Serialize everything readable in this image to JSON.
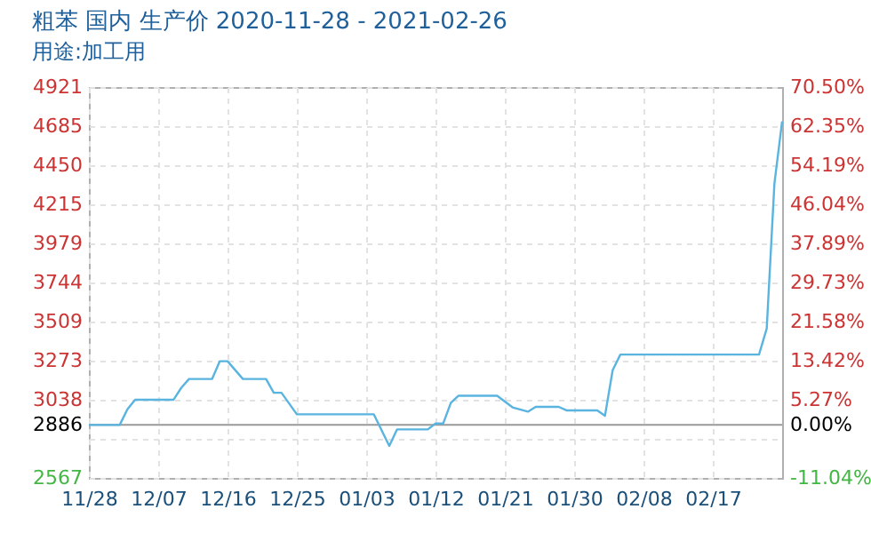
{
  "chart_data": {
    "type": "line",
    "title": "粗苯 国内 生产价 2020-11-28 - 2021-02-26",
    "subtitle": "用途:加工用",
    "x": [
      "2020-11-28",
      "2020-12-02",
      "2020-12-03",
      "2020-12-04",
      "2020-12-09",
      "2020-12-10",
      "2020-12-11",
      "2020-12-14",
      "2020-12-15",
      "2020-12-16",
      "2020-12-18",
      "2020-12-21",
      "2020-12-22",
      "2020-12-23",
      "2020-12-25",
      "2021-01-04",
      "2021-01-06",
      "2021-01-07",
      "2021-01-11",
      "2021-01-12",
      "2021-01-13",
      "2021-01-14",
      "2021-01-15",
      "2021-01-20",
      "2021-01-22",
      "2021-01-24",
      "2021-01-25",
      "2021-01-28",
      "2021-01-29",
      "2021-02-02",
      "2021-02-03",
      "2021-02-04",
      "2021-02-05",
      "2021-02-23",
      "2021-02-24",
      "2021-02-25",
      "2021-02-26"
    ],
    "series": [
      {
        "color": "#5ab4e0",
        "values": [
          2886,
          2886,
          2980,
          3038,
          3038,
          3110,
          3163,
          3163,
          3270,
          3270,
          3163,
          3163,
          3080,
          3080,
          2950,
          2950,
          2760,
          2859,
          2859,
          2895,
          2895,
          3020,
          3062,
          3062,
          2992,
          2966,
          2995,
          2995,
          2974,
          2974,
          2941,
          3216,
          3310,
          3310,
          3466,
          4340,
          4714
        ]
      }
    ],
    "xlim": [
      "2020-11-28",
      "2021-02-26"
    ],
    "xticks": [
      {
        "value": "2020-11-28",
        "label": "11/28"
      },
      {
        "value": "2020-12-07",
        "label": "12/07"
      },
      {
        "value": "2020-12-16",
        "label": "12/16"
      },
      {
        "value": "2020-12-25",
        "label": "12/25"
      },
      {
        "value": "2021-01-03",
        "label": "01/03"
      },
      {
        "value": "2021-01-12",
        "label": "01/12"
      },
      {
        "value": "2021-01-21",
        "label": "01/21"
      },
      {
        "value": "2021-01-30",
        "label": "01/30"
      },
      {
        "value": "2021-02-08",
        "label": "02/08"
      },
      {
        "value": "2021-02-17",
        "label": "02/17"
      }
    ],
    "ylim": [
      2567,
      4921
    ],
    "yticks": [
      2567,
      {
        "value": 2802,
        "label": null
      },
      3038,
      3273,
      3509,
      3744,
      3979,
      4215,
      4450,
      4685,
      4921
    ],
    "y2lim": [
      -11.04,
      70.5
    ],
    "y2ticks": [
      {
        "value": -11.04,
        "label": "-11.04%"
      },
      {
        "value": -2.91,
        "label": null
      },
      {
        "value": 0,
        "label": "0.00%"
      },
      {
        "value": 5.27,
        "label": "5.27%"
      },
      {
        "value": 13.42,
        "label": "13.42%"
      },
      {
        "value": 21.58,
        "label": "21.58%"
      },
      {
        "value": 29.73,
        "label": "29.73%"
      },
      {
        "value": 37.89,
        "label": "37.89%"
      },
      {
        "value": 46.04,
        "label": "46.04%"
      },
      {
        "value": 54.19,
        "label": "54.19%"
      },
      {
        "value": 62.35,
        "label": "62.35%"
      },
      {
        "value": 70.5,
        "label": "70.50%"
      }
    ],
    "ref_lines": [
      {
        "axis": "y",
        "value": 2886,
        "label": "2886",
        "color": "#999999"
      }
    ],
    "grid": true
  }
}
